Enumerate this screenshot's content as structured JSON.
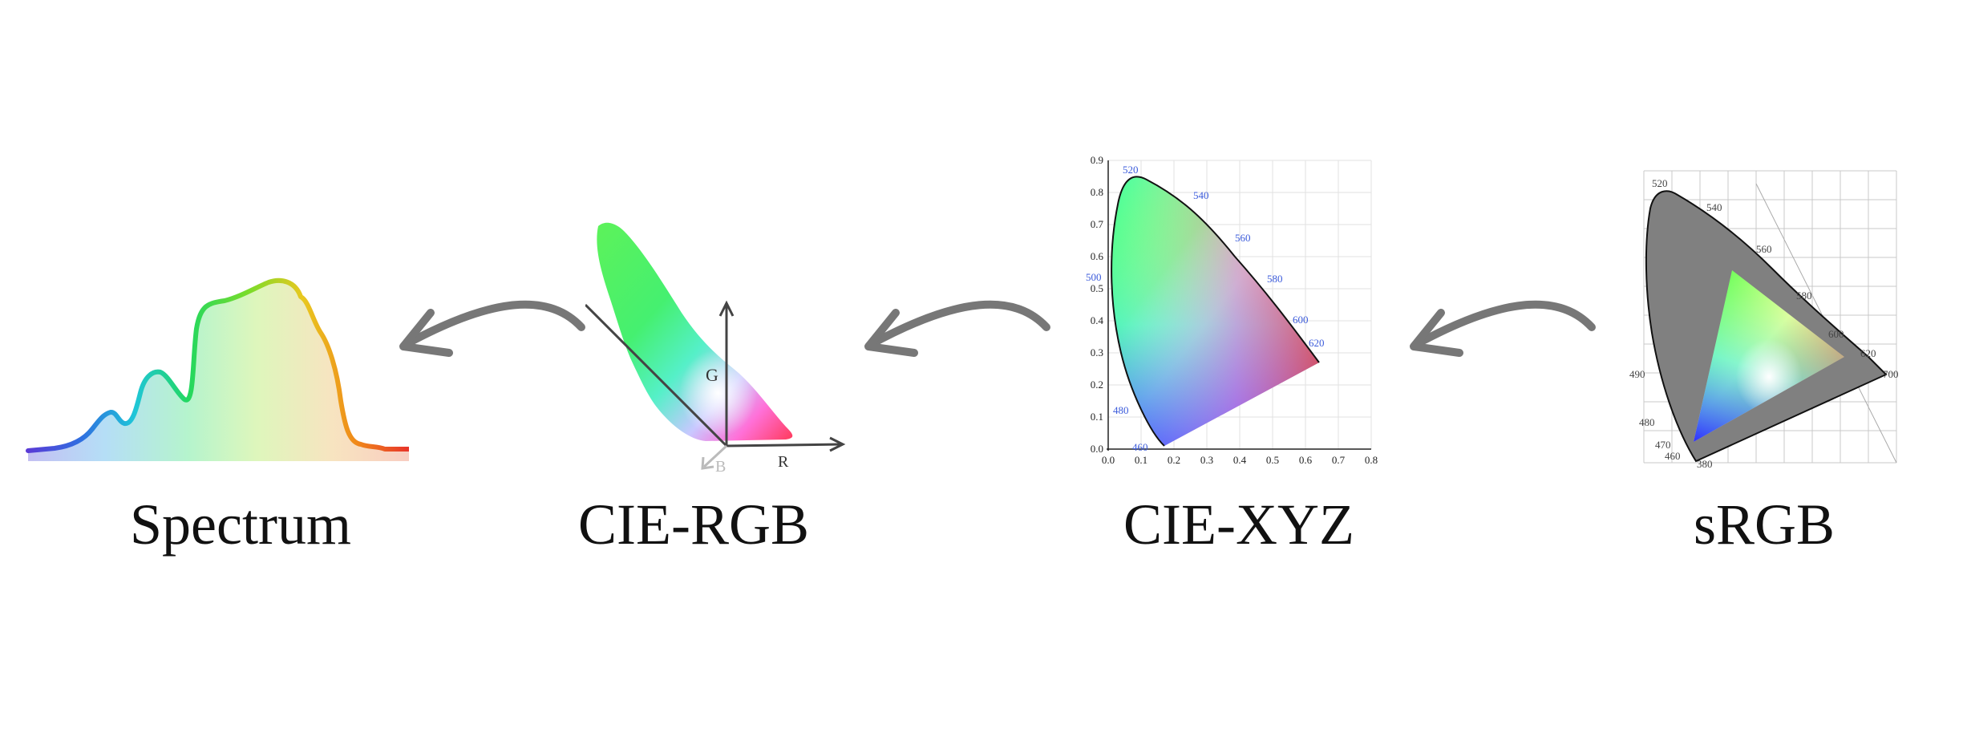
{
  "captions": {
    "spectrum": "Spectrum",
    "cie_rgb": "CIE-RGB",
    "cie_xyz": "CIE-XYZ",
    "srgb": "sRGB"
  },
  "cie_rgb_axes": {
    "g": "G",
    "r": "R",
    "b": "B"
  },
  "xyz_chart": {
    "x_ticks": [
      "0.0",
      "0.1",
      "0.2",
      "0.3",
      "0.4",
      "0.5",
      "0.6",
      "0.7",
      "0.8"
    ],
    "y_ticks": [
      "0.0",
      "0.1",
      "0.2",
      "0.3",
      "0.4",
      "0.5",
      "0.6",
      "0.7",
      "0.8",
      "0.9"
    ],
    "wavelengths": [
      "520",
      "540",
      "560",
      "580",
      "600",
      "620",
      "500",
      "480",
      "460"
    ]
  },
  "srgb_chart": {
    "wavelengths": [
      "520",
      "540",
      "560",
      "580",
      "600",
      "620",
      "700",
      "490",
      "480",
      "470",
      "460",
      "380"
    ]
  },
  "colors": {
    "arrow": "#777777",
    "label_blue": "#3b5bdb",
    "gamut_gray": "#808080"
  }
}
